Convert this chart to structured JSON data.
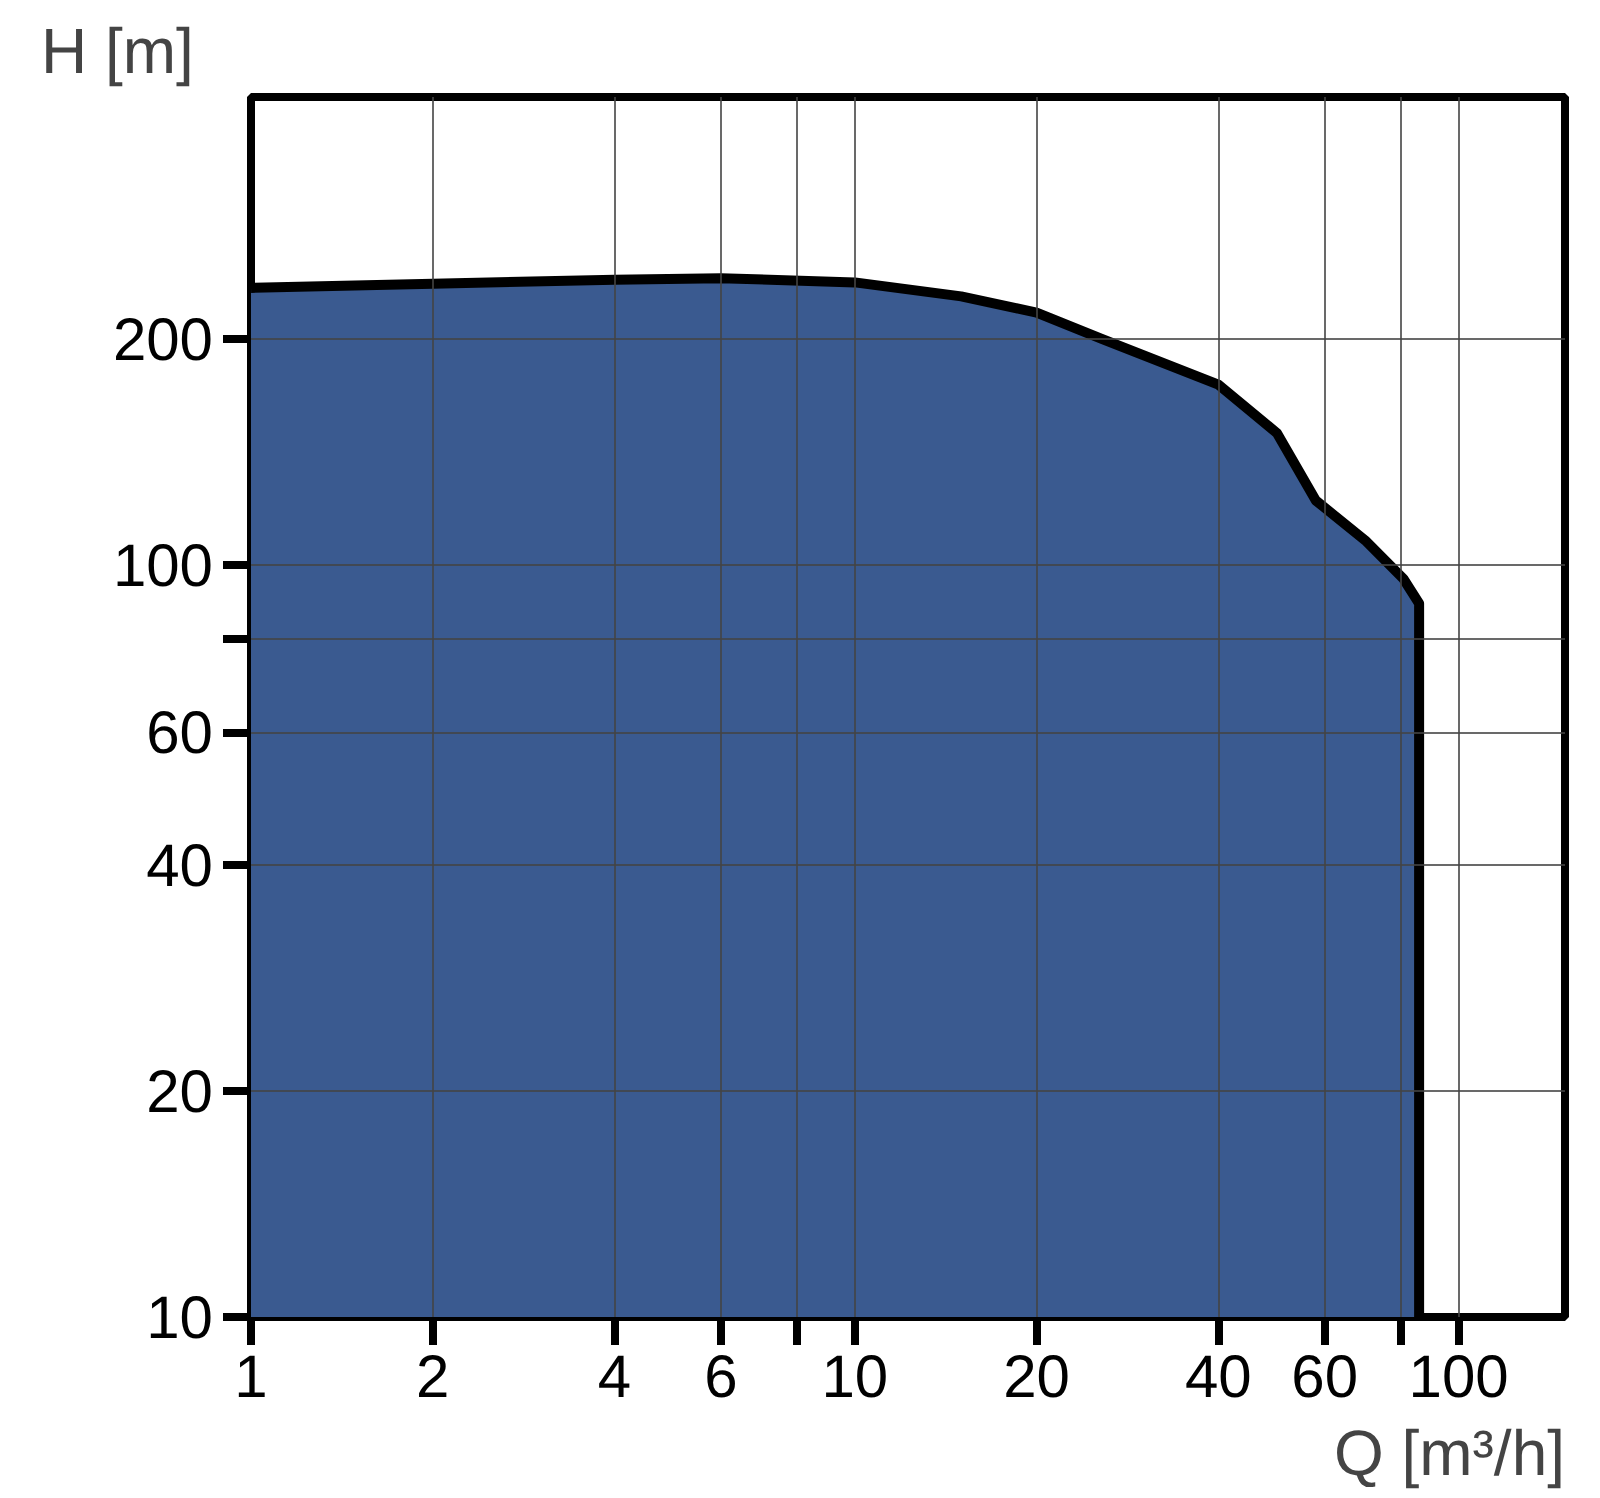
{
  "chart_data": {
    "type": "area",
    "xlabel": "Q [m³/h]",
    "ylabel": "H [m]",
    "log": "xy",
    "grid": true,
    "xlim": [
      1,
      150
    ],
    "ylim": [
      10,
      420
    ],
    "xticks": [
      1,
      2,
      4,
      6,
      {
        "value": 8,
        "label": null
      },
      10,
      20,
      40,
      60,
      {
        "value": 80,
        "label": null
      },
      100
    ],
    "yticks": [
      10,
      20,
      40,
      60,
      {
        "value": 80,
        "label": null
      },
      100,
      200
    ],
    "x": [
      1,
      2,
      4,
      6,
      10,
      15,
      20,
      25.7,
      40,
      50,
      58,
      70,
      81,
      86,
      86
    ],
    "series": [
      {
        "color": "#3a5a90",
        "values": [
          234,
          237,
          240,
          241,
          238,
          228,
          217,
          200,
          174,
          150,
          122,
          108,
          96,
          89,
          10
        ]
      }
    ]
  }
}
